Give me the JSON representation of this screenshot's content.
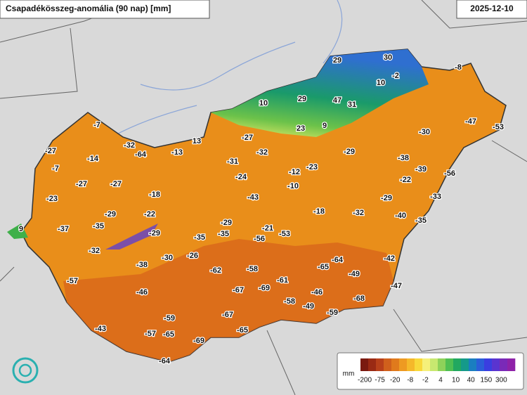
{
  "title": "Csapadékösszeg-anomália (90 nap) [mm]",
  "date": "2025-12-10",
  "stations": [
    -7,
    -32,
    -64,
    -13,
    13,
    -27,
    -14,
    -7,
    -27,
    -27,
    -18,
    -23,
    -29,
    -22,
    -29,
    -37,
    -35,
    -32,
    -35,
    -35,
    -29,
    -30,
    -26,
    -38,
    -57,
    -46,
    -59,
    -43,
    -57,
    -65,
    -69,
    -64,
    9,
    -62,
    -58,
    -67,
    -69,
    -61,
    -67,
    -65,
    -58,
    -46,
    -49,
    -59,
    -68,
    -56,
    -21,
    -53,
    -65,
    -64,
    -49,
    -42,
    -47,
    -43,
    -31,
    -24,
    -27,
    -32,
    10,
    29,
    23,
    9,
    47,
    31,
    29,
    30,
    -2,
    10,
    -8,
    -47,
    -53,
    -30,
    -29,
    -38,
    -39,
    -22,
    -56,
    -33,
    -12,
    -23,
    -10,
    -18,
    -32,
    -29,
    -40,
    -35
  ],
  "legend": {
    "unit": "mm",
    "ticks": [
      -200,
      -75,
      -20,
      -8,
      -2,
      4,
      10,
      40,
      150,
      300
    ]
  }
}
